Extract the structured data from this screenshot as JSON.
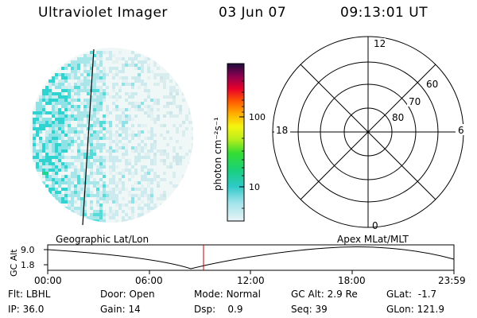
{
  "header": {
    "title": "Ultraviolet Imager",
    "date": "03 Jun 07",
    "time": "09:13:01 UT"
  },
  "colorbar": {
    "label": "photon cm⁻²s⁻¹",
    "ticks": [
      "100",
      "10"
    ],
    "scale": "log"
  },
  "polar_plot": {
    "mlt_labels": {
      "top": "12",
      "left": "18",
      "right": "6",
      "bottom": "0"
    },
    "lat_labels": [
      "60",
      "70",
      "80"
    ]
  },
  "panel_labels": {
    "left": "Geographic Lat/Lon",
    "right": "Apex MLat/MLT"
  },
  "altitude_plot": {
    "ylabel": "GC Alt",
    "yticks": [
      "9.0",
      "1.8"
    ],
    "xticks": [
      "00:00",
      "06:00",
      "12:00",
      "18:00",
      "23:59"
    ],
    "current_time_marker": "09:13:01",
    "colors": {
      "marker": "#cc0000",
      "curve": "#000000"
    }
  },
  "info": {
    "row1": {
      "flt_label": "Flt:",
      "flt_value": "LBHL",
      "door_label": "Door:",
      "door_value": "Open",
      "mode_label": "Mode:",
      "mode_value": "Normal",
      "gcalt_label": "GC Alt:",
      "gcalt_value": "2.9 Re",
      "glat_label": "GLat:",
      "glat_value": "-1.7"
    },
    "row2": {
      "ip_label": "IP:",
      "ip_value": "36.0",
      "gain_label": "Gain:",
      "gain_value": "14",
      "dsp_label": "Dsp:",
      "dsp_value": "0.9",
      "seq_label": "Seq:",
      "seq_value": "39",
      "glon_label": "GLon:",
      "glon_value": "121.9"
    }
  }
}
